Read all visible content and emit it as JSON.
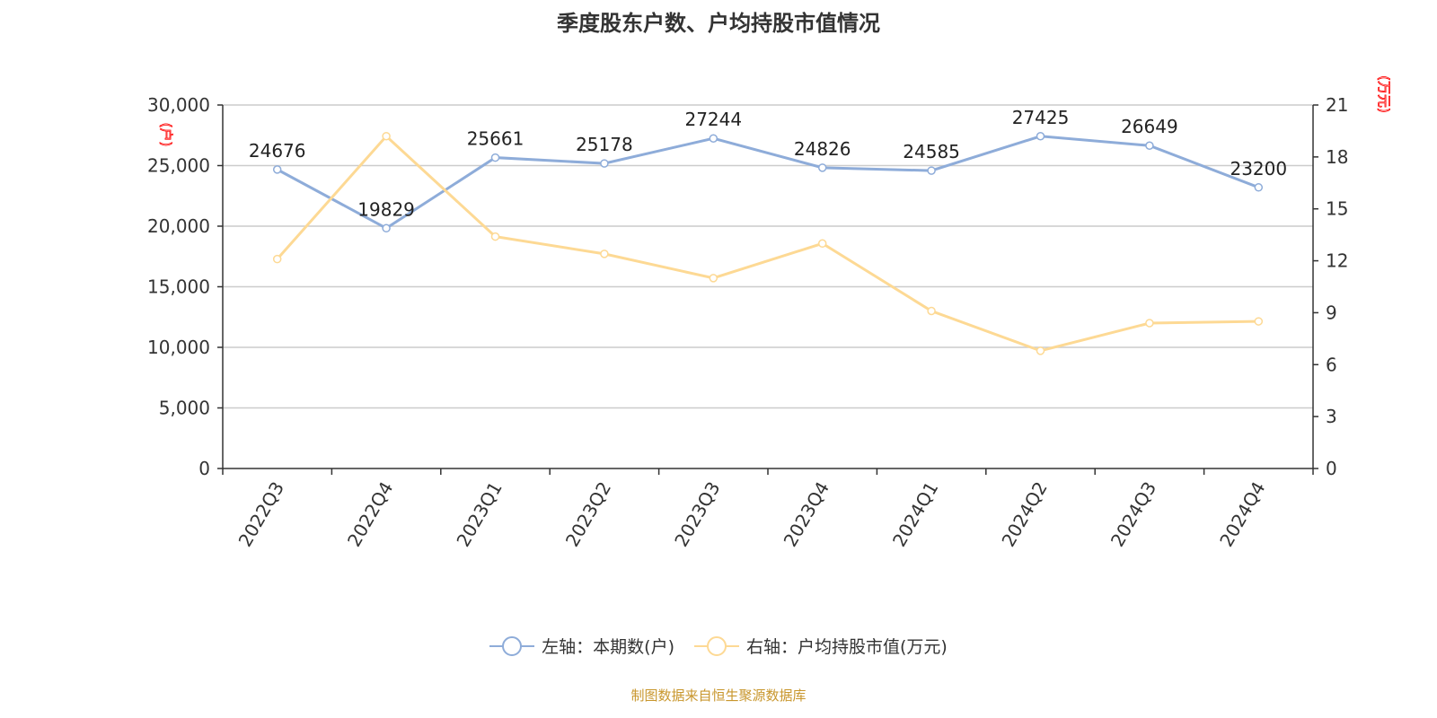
{
  "chart_data": {
    "type": "line",
    "title": "季度股东户数、户均持股市值情况",
    "categories": [
      "2022Q3",
      "2022Q4",
      "2023Q1",
      "2023Q2",
      "2023Q3",
      "2023Q4",
      "2024Q1",
      "2024Q2",
      "2024Q3",
      "2024Q4"
    ],
    "left_axis": {
      "name": "(户)",
      "range": [
        0,
        30000
      ],
      "ticks": [
        "0",
        "5,000",
        "10,000",
        "15,000",
        "20,000",
        "25,000",
        "30,000"
      ]
    },
    "right_axis": {
      "name": "(万元)",
      "range": [
        0,
        21
      ],
      "ticks": [
        "0",
        "3",
        "6",
        "9",
        "12",
        "15",
        "18",
        "21"
      ]
    },
    "series": [
      {
        "name": "左轴：本期数(户)",
        "axis": "left",
        "color": "#8eacd9",
        "labels": true,
        "values": [
          24676,
          19829,
          25661,
          25178,
          27244,
          24826,
          24585,
          27425,
          26649,
          23200
        ]
      },
      {
        "name": "右轴：户均持股市值(万元)",
        "axis": "right",
        "color": "#fdd994",
        "labels": false,
        "values": [
          12.1,
          19.2,
          13.4,
          12.4,
          11.0,
          13.0,
          9.1,
          6.8,
          8.4,
          8.5
        ]
      }
    ],
    "grid": true,
    "legend_position": "bottom"
  },
  "footer": "制图数据来自恒生聚源数据库"
}
